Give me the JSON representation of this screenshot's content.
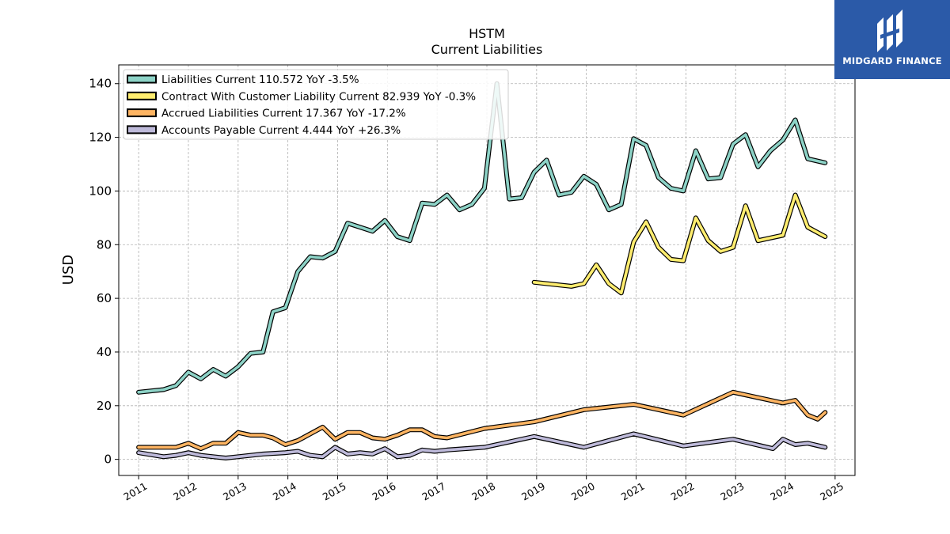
{
  "brand": {
    "name": "MIDGARD FINANCE",
    "bg_color": "#2b5aa8"
  },
  "chart_data": {
    "type": "line",
    "title": "HSTM",
    "subtitle": "Current  Liabilities",
    "xlabel": "",
    "ylabel": "USD",
    "xlim": [
      2010.6,
      2025.4
    ],
    "ylim": [
      -6,
      147
    ],
    "x_ticks": [
      "2011",
      "2012",
      "2013",
      "2014",
      "2015",
      "2016",
      "2017",
      "2018",
      "2019",
      "2020",
      "2021",
      "2022",
      "2023",
      "2024",
      "2025"
    ],
    "y_ticks": [
      "0",
      "20",
      "40",
      "60",
      "80",
      "100",
      "120",
      "140"
    ],
    "grid": true,
    "legend_position": "top-left",
    "series": [
      {
        "name": "Liabilities Current  110.572 YoY -3.5%",
        "color": "#8dd3c7",
        "points": [
          [
            2011.0,
            25
          ],
          [
            2011.5,
            26
          ],
          [
            2011.75,
            27.5
          ],
          [
            2012.0,
            32.5
          ],
          [
            2012.25,
            30
          ],
          [
            2012.5,
            33.5
          ],
          [
            2012.75,
            31
          ],
          [
            2013.0,
            34.5
          ],
          [
            2013.25,
            39.5
          ],
          [
            2013.5,
            40
          ],
          [
            2013.7,
            55
          ],
          [
            2013.95,
            56.5
          ],
          [
            2014.2,
            70
          ],
          [
            2014.45,
            75.5
          ],
          [
            2014.7,
            75
          ],
          [
            2014.95,
            77.5
          ],
          [
            2015.2,
            88
          ],
          [
            2015.45,
            86.5
          ],
          [
            2015.7,
            85
          ],
          [
            2015.95,
            89
          ],
          [
            2016.2,
            83
          ],
          [
            2016.45,
            81.5
          ],
          [
            2016.7,
            95.5
          ],
          [
            2016.95,
            95
          ],
          [
            2017.2,
            98.5
          ],
          [
            2017.45,
            93
          ],
          [
            2017.7,
            95
          ],
          [
            2017.95,
            101
          ],
          [
            2018.2,
            140
          ],
          [
            2018.45,
            97
          ],
          [
            2018.7,
            97.5
          ],
          [
            2018.95,
            107
          ],
          [
            2019.2,
            111.5
          ],
          [
            2019.45,
            98.5
          ],
          [
            2019.7,
            99.5
          ],
          [
            2019.95,
            105.5
          ],
          [
            2020.2,
            102.5
          ],
          [
            2020.45,
            93
          ],
          [
            2020.7,
            95
          ],
          [
            2020.95,
            119.5
          ],
          [
            2021.2,
            117
          ],
          [
            2021.45,
            105
          ],
          [
            2021.7,
            101
          ],
          [
            2021.95,
            100
          ],
          [
            2022.2,
            115
          ],
          [
            2022.45,
            104.5
          ],
          [
            2022.7,
            105
          ],
          [
            2022.95,
            117.5
          ],
          [
            2023.2,
            121
          ],
          [
            2023.45,
            109
          ],
          [
            2023.7,
            115
          ],
          [
            2023.95,
            119
          ],
          [
            2024.2,
            126.5
          ],
          [
            2024.45,
            112
          ],
          [
            2024.8,
            110.5
          ]
        ]
      },
      {
        "name": "Contract With Customer Liability Current  82.939 YoY -0.3%",
        "color": "#ffed6f",
        "points": [
          [
            2018.95,
            66
          ],
          [
            2019.7,
            64.5
          ],
          [
            2019.95,
            65.5
          ],
          [
            2020.2,
            72.5
          ],
          [
            2020.45,
            65.5
          ],
          [
            2020.7,
            62
          ],
          [
            2020.95,
            81
          ],
          [
            2021.2,
            88.5
          ],
          [
            2021.45,
            79
          ],
          [
            2021.7,
            74.5
          ],
          [
            2021.95,
            74
          ],
          [
            2022.2,
            90
          ],
          [
            2022.45,
            81.5
          ],
          [
            2022.7,
            77.5
          ],
          [
            2022.95,
            79
          ],
          [
            2023.2,
            94.5
          ],
          [
            2023.45,
            81.5
          ],
          [
            2023.7,
            82.5
          ],
          [
            2023.95,
            83.5
          ],
          [
            2024.2,
            98.5
          ],
          [
            2024.45,
            86.5
          ],
          [
            2024.8,
            83
          ]
        ]
      },
      {
        "name": "Accrued Liabilities Current  17.367 YoY -17.2%",
        "color": "#fdb462",
        "points": [
          [
            2011.0,
            4.5
          ],
          [
            2011.5,
            4.5
          ],
          [
            2011.75,
            4.5
          ],
          [
            2012.0,
            6
          ],
          [
            2012.25,
            4
          ],
          [
            2012.5,
            6
          ],
          [
            2012.75,
            6
          ],
          [
            2013.0,
            10
          ],
          [
            2013.25,
            9
          ],
          [
            2013.5,
            9
          ],
          [
            2013.7,
            8
          ],
          [
            2013.95,
            5.5
          ],
          [
            2014.2,
            7
          ],
          [
            2014.45,
            9.5
          ],
          [
            2014.7,
            12
          ],
          [
            2014.95,
            7.5
          ],
          [
            2015.2,
            10
          ],
          [
            2015.45,
            10
          ],
          [
            2015.7,
            8
          ],
          [
            2015.95,
            7.5
          ],
          [
            2016.2,
            9
          ],
          [
            2016.45,
            11
          ],
          [
            2016.7,
            11
          ],
          [
            2016.95,
            8.5
          ],
          [
            2017.2,
            8
          ],
          [
            2017.95,
            11.5
          ],
          [
            2018.95,
            14
          ],
          [
            2019.95,
            18.5
          ],
          [
            2020.95,
            20.5
          ],
          [
            2021.95,
            16.5
          ],
          [
            2022.95,
            25
          ],
          [
            2023.95,
            21
          ],
          [
            2024.2,
            22
          ],
          [
            2024.45,
            16.5
          ],
          [
            2024.65,
            15
          ],
          [
            2024.8,
            17.5
          ]
        ]
      },
      {
        "name": "Accounts Payable Current  4.444 YoY +26.3%",
        "color": "#bebada",
        "points": [
          [
            2011.0,
            2.5
          ],
          [
            2011.5,
            1
          ],
          [
            2011.75,
            1.5
          ],
          [
            2012.0,
            2.5
          ],
          [
            2012.25,
            1.5
          ],
          [
            2012.5,
            1
          ],
          [
            2012.75,
            0.5
          ],
          [
            2013.0,
            1
          ],
          [
            2013.5,
            2
          ],
          [
            2013.95,
            2.5
          ],
          [
            2014.2,
            3
          ],
          [
            2014.45,
            1.5
          ],
          [
            2014.7,
            1
          ],
          [
            2014.95,
            4.5
          ],
          [
            2015.2,
            2
          ],
          [
            2015.45,
            2.5
          ],
          [
            2015.7,
            2
          ],
          [
            2015.95,
            4
          ],
          [
            2016.2,
            1
          ],
          [
            2016.45,
            1.5
          ],
          [
            2016.7,
            3.5
          ],
          [
            2016.95,
            3
          ],
          [
            2017.2,
            3.5
          ],
          [
            2017.95,
            4.5
          ],
          [
            2018.95,
            8.5
          ],
          [
            2019.95,
            4.5
          ],
          [
            2020.95,
            9.5
          ],
          [
            2021.95,
            5
          ],
          [
            2022.95,
            7.5
          ],
          [
            2023.75,
            4
          ],
          [
            2023.95,
            7.5
          ],
          [
            2024.2,
            5.5
          ],
          [
            2024.45,
            6
          ],
          [
            2024.8,
            4.5
          ]
        ]
      }
    ]
  }
}
